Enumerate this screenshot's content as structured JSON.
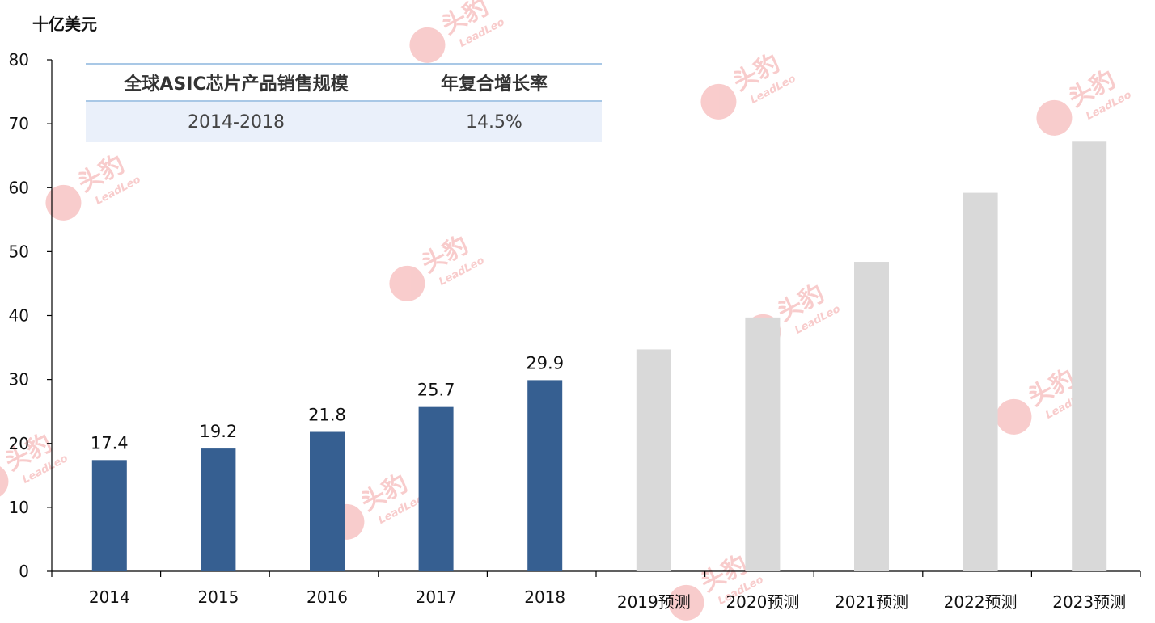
{
  "unit_label": "十亿美元",
  "cagr_table": {
    "headers": [
      "全球ASIC芯片产品销售规模",
      "年复合增长率"
    ],
    "row": [
      "2014-2018",
      "14.5%"
    ]
  },
  "watermark": {
    "text": "头豹",
    "subtext": "LeadLeo",
    "color": "#f4a3a3"
  },
  "chart_data": {
    "type": "bar",
    "title": "",
    "xlabel": "",
    "ylabel": "十亿美元",
    "ylim": [
      0,
      80
    ],
    "yticks": [
      0,
      10,
      20,
      30,
      40,
      50,
      60,
      70,
      80
    ],
    "grid": false,
    "categories": [
      "2014",
      "2015",
      "2016",
      "2017",
      "2018",
      "2019预测",
      "2020预测",
      "2021预测",
      "2022预测",
      "2023预测"
    ],
    "values": [
      17.4,
      19.2,
      21.8,
      25.7,
      29.9,
      34.7,
      39.7,
      48.4,
      59.2,
      67.2
    ],
    "value_labels": [
      "17.4",
      "19.2",
      "21.8",
      "25.7",
      "29.9",
      "",
      "",
      "",
      "",
      ""
    ],
    "bar_colors": [
      "#365f91",
      "#365f91",
      "#365f91",
      "#365f91",
      "#365f91",
      "#d9d9d9",
      "#d9d9d9",
      "#d9d9d9",
      "#d9d9d9",
      "#d9d9d9"
    ]
  }
}
